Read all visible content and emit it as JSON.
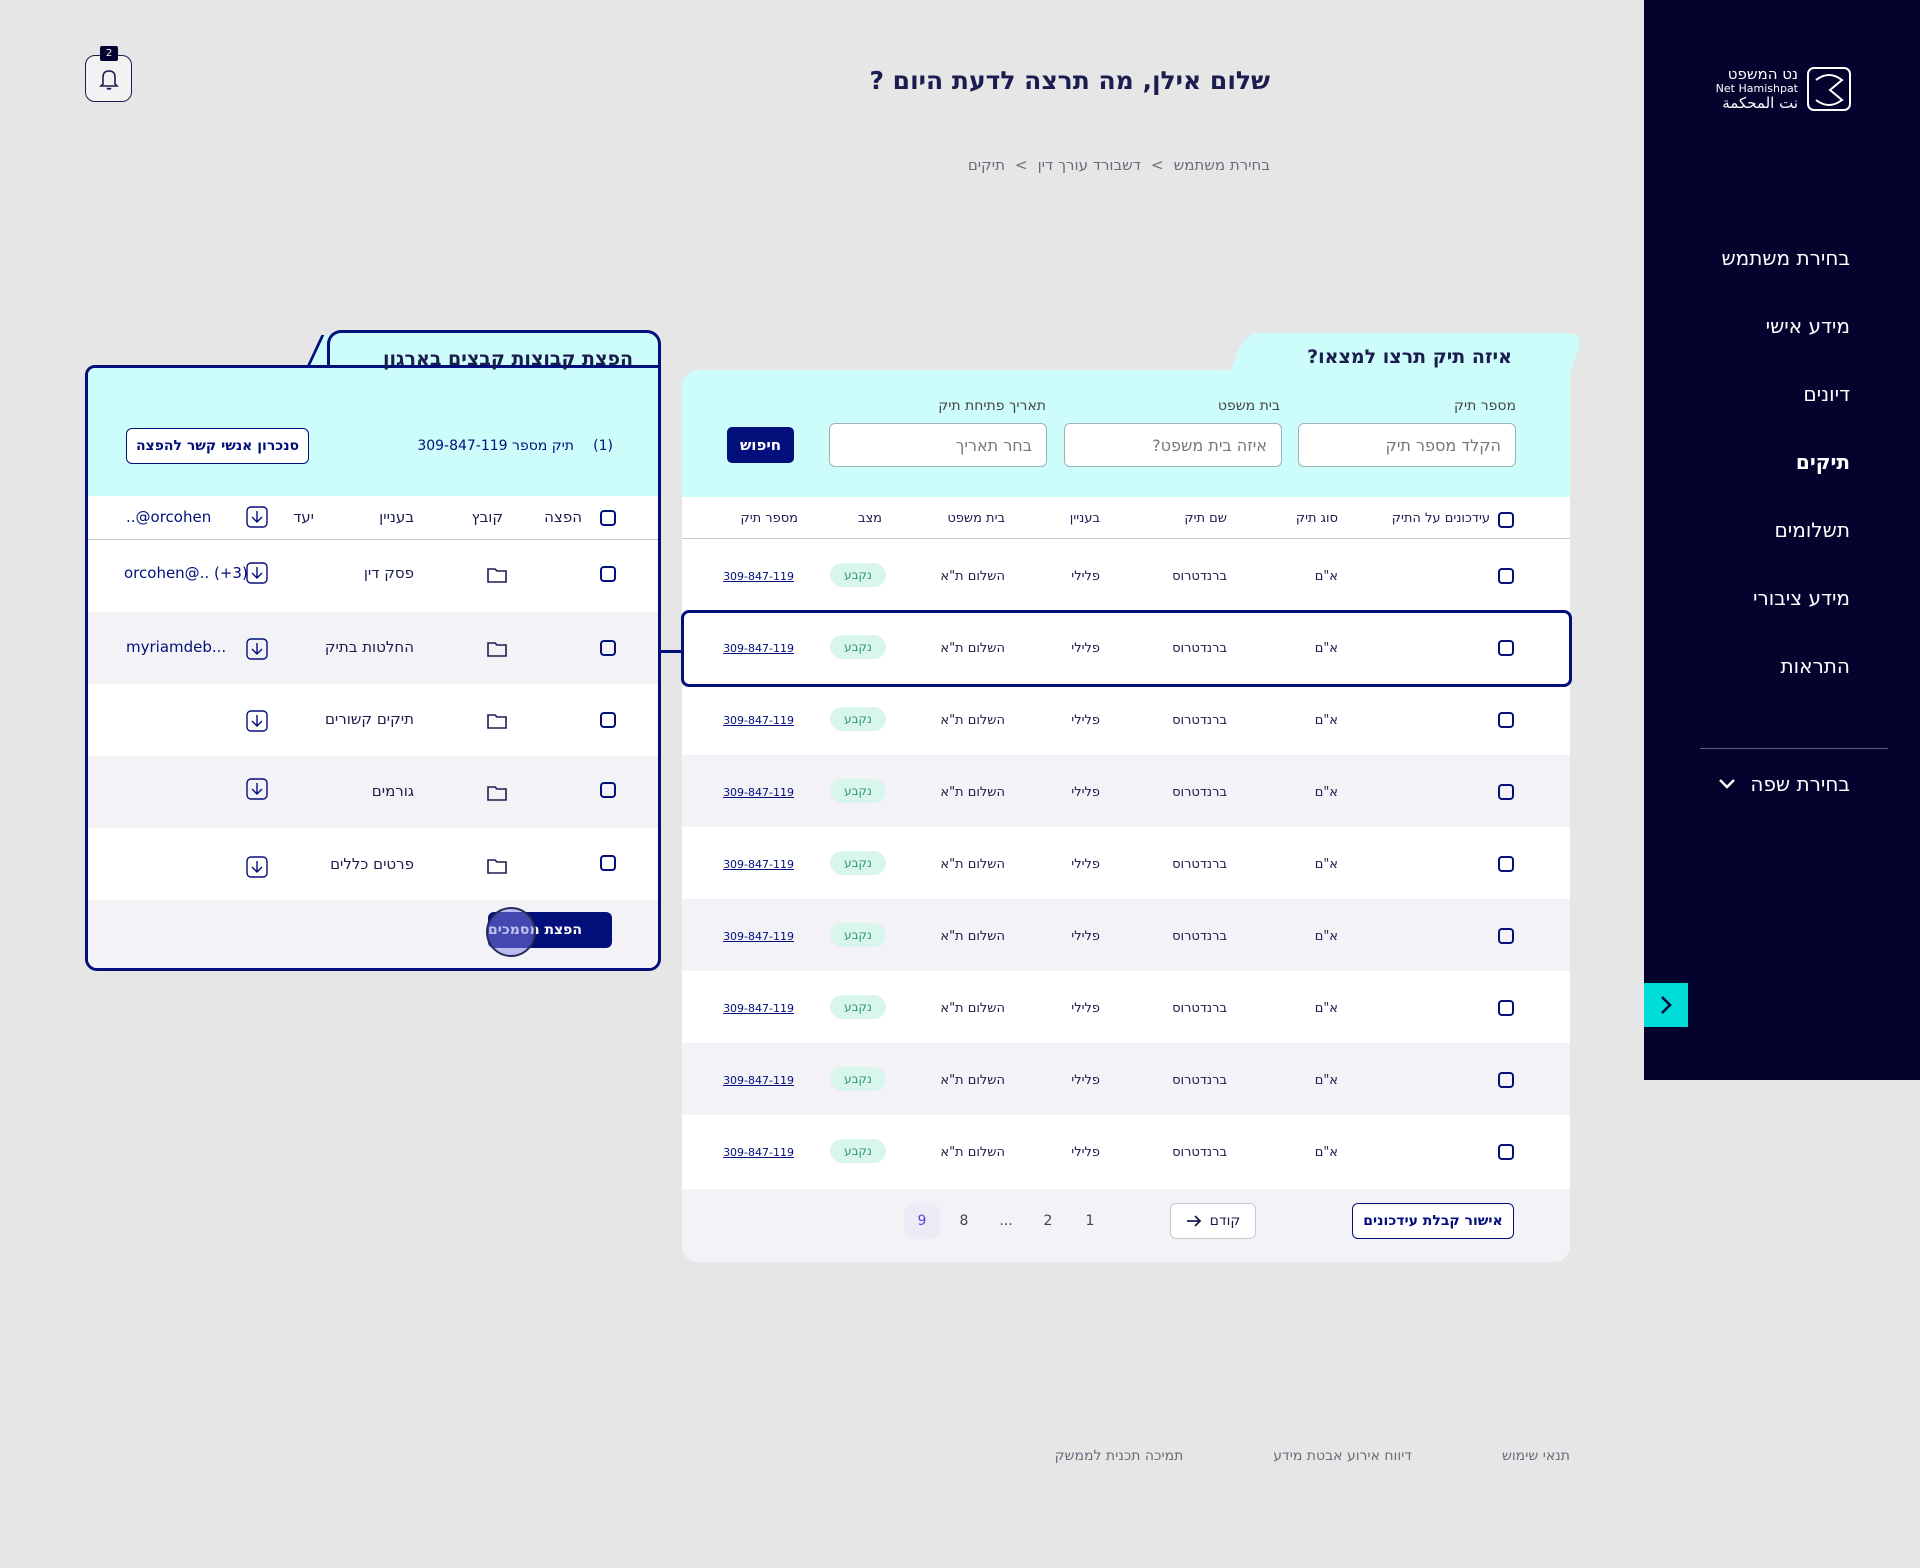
{
  "sidebar": {
    "logo": {
      "he": "נט המשפט",
      "en": "Net Hamishpat",
      "ar": "نت المحكمة"
    },
    "items": [
      {
        "label": "בחירת משתמש",
        "active": false
      },
      {
        "label": "מידע אישי",
        "active": false
      },
      {
        "label": "דיונים",
        "active": false
      },
      {
        "label": "תיקים",
        "active": true
      },
      {
        "label": "תשלומים",
        "active": false
      },
      {
        "label": "מידע ציבורי",
        "active": false
      },
      {
        "label": "התראות",
        "active": false
      }
    ],
    "language_label": "בחירת שפה"
  },
  "header": {
    "greeting": "שלום אילן, מה תרצה לדעת היום ?",
    "notifications_count": "2",
    "breadcrumb": [
      "בחירת משתמש",
      ">",
      "דשבורד עורך דין",
      ">",
      "תיקים"
    ]
  },
  "search": {
    "title": "איזה תיק תרצו למצאו?",
    "case_number_label": "מספר תיק",
    "case_number_placeholder": "הקלד מספר תיק",
    "court_label": "בית משפט",
    "court_placeholder": "איזה בית משפט?",
    "date_label": "תאריך פתיחת תיק",
    "date_placeholder": "בחר תאריך",
    "search_button": "חיפוש"
  },
  "table": {
    "columns": [
      "עידכונים על התיק",
      "סוג תיק",
      "שם תיק",
      "בעניין",
      "בית משפט",
      "מצב",
      "מספר תיק"
    ],
    "rows": [
      {
        "type": "א\"ם",
        "name": "ברנדטרוס",
        "matter": "פלילי",
        "court": "השלום ת\"א",
        "status": "נקבע",
        "number": "309-847-119"
      },
      {
        "type": "א\"ם",
        "name": "ברנדטרוס",
        "matter": "פלילי",
        "court": "השלום ת\"א",
        "status": "נקבע",
        "number": "309-847-119"
      },
      {
        "type": "א\"ם",
        "name": "ברנדטרוס",
        "matter": "פלילי",
        "court": "השלום ת\"א",
        "status": "נקבע",
        "number": "309-847-119"
      },
      {
        "type": "א\"ם",
        "name": "ברנדטרוס",
        "matter": "פלילי",
        "court": "השלום ת\"א",
        "status": "נקבע",
        "number": "309-847-119"
      },
      {
        "type": "א\"ם",
        "name": "ברנדטרוס",
        "matter": "פלילי",
        "court": "השלום ת\"א",
        "status": "נקבע",
        "number": "309-847-119"
      },
      {
        "type": "א\"ם",
        "name": "ברנדטרוס",
        "matter": "פלילי",
        "court": "השלום ת\"א",
        "status": "נקבע",
        "number": "309-847-119"
      },
      {
        "type": "א\"ם",
        "name": "ברנדטרוס",
        "matter": "פלילי",
        "court": "השלום ת\"א",
        "status": "נקבע",
        "number": "309-847-119"
      },
      {
        "type": "א\"ם",
        "name": "ברנדטרוס",
        "matter": "פלילי",
        "court": "השלום ת\"א",
        "status": "נקבע",
        "number": "309-847-119"
      },
      {
        "type": "א\"ם",
        "name": "ברנדטרוס",
        "matter": "פלילי",
        "court": "השלום ת\"א",
        "status": "נקבע",
        "number": "309-847-119"
      }
    ],
    "approve_button": "אישור קבלת עידכונים",
    "prev_button": "קודם",
    "pages": [
      "1",
      "2",
      "...",
      "8",
      "9"
    ],
    "current_page": "9"
  },
  "distribution": {
    "title": "הפצת קבוצות קבצים בארגון",
    "selected_count": "(1)",
    "case_label": "תיק מספר 309-847-119",
    "sync_button": "סנכרון אנשי קשר להפצה",
    "columns": {
      "distribute": "הפצה",
      "file": "קובץ",
      "matter": "בעניין",
      "target": "יעד",
      "target_value": "orcohen@.."
    },
    "rows": [
      {
        "matter": "פסק דין",
        "target": "orcohen@.. (+3)"
      },
      {
        "matter": "החלטות בתיק",
        "target": "myriamdeb..."
      },
      {
        "matter": "תיקים קשורים",
        "target": ""
      },
      {
        "matter": "גורמים",
        "target": ""
      },
      {
        "matter": "פרטים כללים",
        "target": ""
      }
    ],
    "distribute_button": "הפצת מסמכים"
  },
  "footer": {
    "links": [
      "תנאי שימוש",
      "דיווח אירוע אבטת מידע",
      "תמיכה תכנית לממשק"
    ]
  }
}
